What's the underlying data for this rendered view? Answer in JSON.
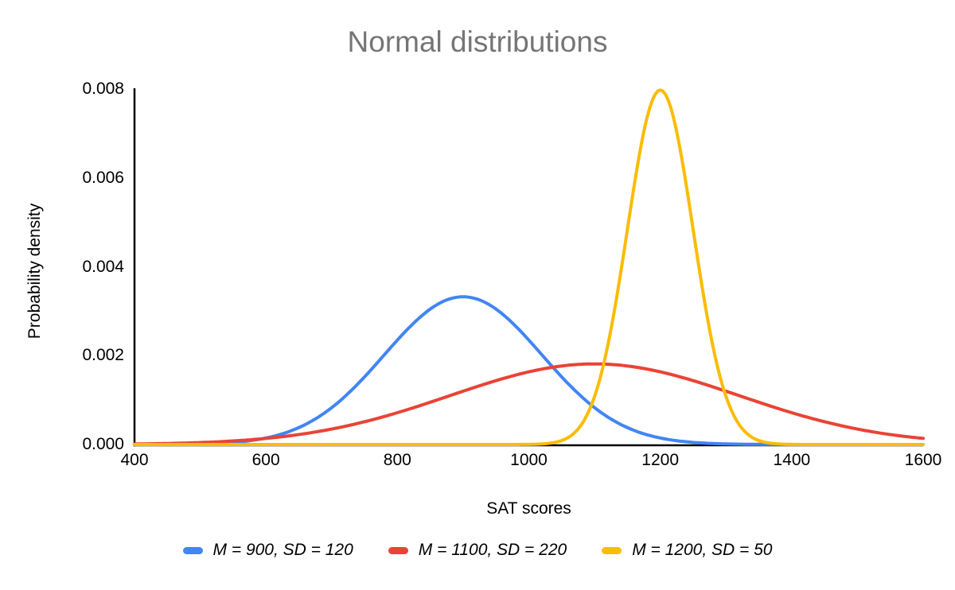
{
  "chart_data": {
    "type": "line",
    "title": "Normal distributions",
    "xlabel": "SAT scores",
    "ylabel": "Probability density",
    "xlim": [
      400,
      1600
    ],
    "ylim": [
      0,
      0.008
    ],
    "x_ticks": [
      400,
      600,
      800,
      1000,
      1200,
      1400,
      1600
    ],
    "y_ticks": [
      0,
      0.002,
      0.004,
      0.006,
      0.008
    ],
    "y_tick_labels": [
      "0.000",
      "0.002",
      "0.004",
      "0.006",
      "0.008"
    ],
    "grid": false,
    "legend_position": "bottom",
    "curve_type": "normal-pdf",
    "series": [
      {
        "name": "M = 900, SD = 120",
        "mean": 900,
        "sd": 120,
        "peak_x": 900,
        "peak_y": 0.00332,
        "color": "#4285F4"
      },
      {
        "name": "M = 1100, SD = 220",
        "mean": 1100,
        "sd": 220,
        "peak_x": 1100,
        "peak_y": 0.00181,
        "color": "#EA4335"
      },
      {
        "name": "M = 1200, SD = 50",
        "mean": 1200,
        "sd": 50,
        "peak_x": 1200,
        "peak_y": 0.00798,
        "color": "#FBBC04"
      }
    ]
  },
  "style": {
    "title_color": "#757575",
    "axis_color": "#000000",
    "text_color": "#000000",
    "background_color": "#ffffff"
  }
}
